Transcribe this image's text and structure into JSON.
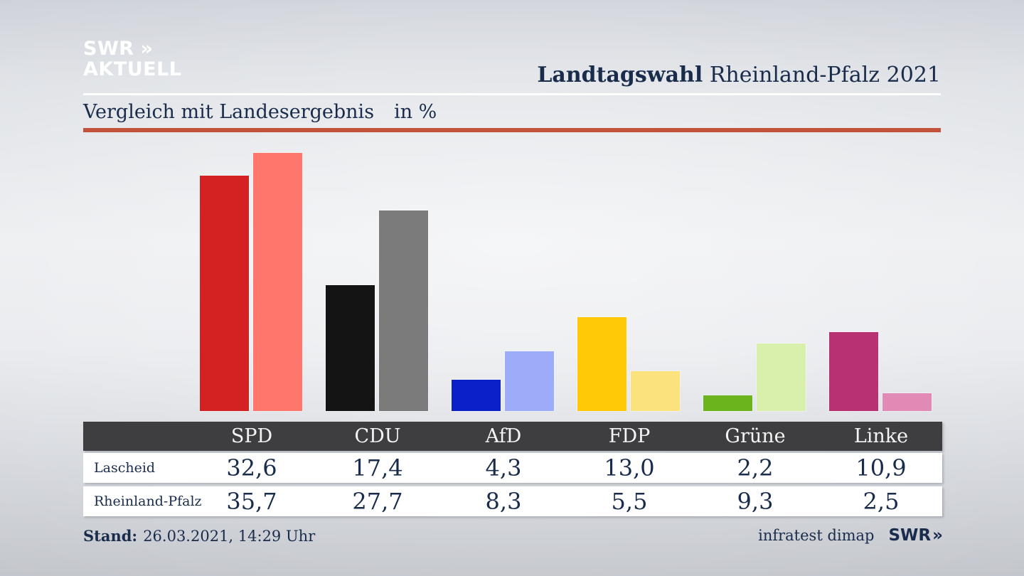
{
  "header": {
    "logo_line1": "SWR",
    "logo_chevrons": "»",
    "logo_line2": "AKTUELL",
    "title_bold": "Landtagswahl",
    "title_rest": " Rheinland-Pfalz 2021"
  },
  "subtitle": {
    "text": "Vergleich mit Landesergebnis",
    "unit": "in %"
  },
  "footer": {
    "stand_label": "Stand:",
    "stand_value": "26.03.2021, 14:29 Uhr",
    "source": "infratest dimap",
    "brand": "SWR",
    "brand_chevrons": "»"
  },
  "colors": {
    "text_navy": "#1a2c4c",
    "rule_red": "#c3523a",
    "table_header_bg": "#3e3e40",
    "row_bg": "#ffffff",
    "logo_white": "#ffffff"
  },
  "chart_data": {
    "type": "bar",
    "title": "Vergleich mit Landesergebnis in %",
    "categories": [
      "SPD",
      "CDU",
      "AfD",
      "FDP",
      "Grüne",
      "Linke"
    ],
    "series": [
      {
        "name": "Lascheid",
        "values": [
          32.6,
          17.4,
          4.3,
          13.0,
          2.2,
          10.9
        ],
        "labels": [
          "32,6",
          "17,4",
          "4,3",
          "13,0",
          "2,2",
          "10,9"
        ],
        "colors": [
          "#d42222",
          "#141414",
          "#0b20c8",
          "#ffc908",
          "#6cb41e",
          "#b83273"
        ]
      },
      {
        "name": "Rheinland-Pfalz",
        "values": [
          35.7,
          27.7,
          8.3,
          5.5,
          9.3,
          2.5
        ],
        "labels": [
          "35,7",
          "27,7",
          "8,3",
          "5,5",
          "9,3",
          "2,5"
        ],
        "colors": [
          "#ff766c",
          "#7b7b7b",
          "#9dacf8",
          "#fce27d",
          "#d9f0ad",
          "#e28ab6"
        ]
      }
    ],
    "unit": "%",
    "ylim": [
      0,
      35.9
    ],
    "grid": false,
    "legend_position": "table-below-chart"
  }
}
